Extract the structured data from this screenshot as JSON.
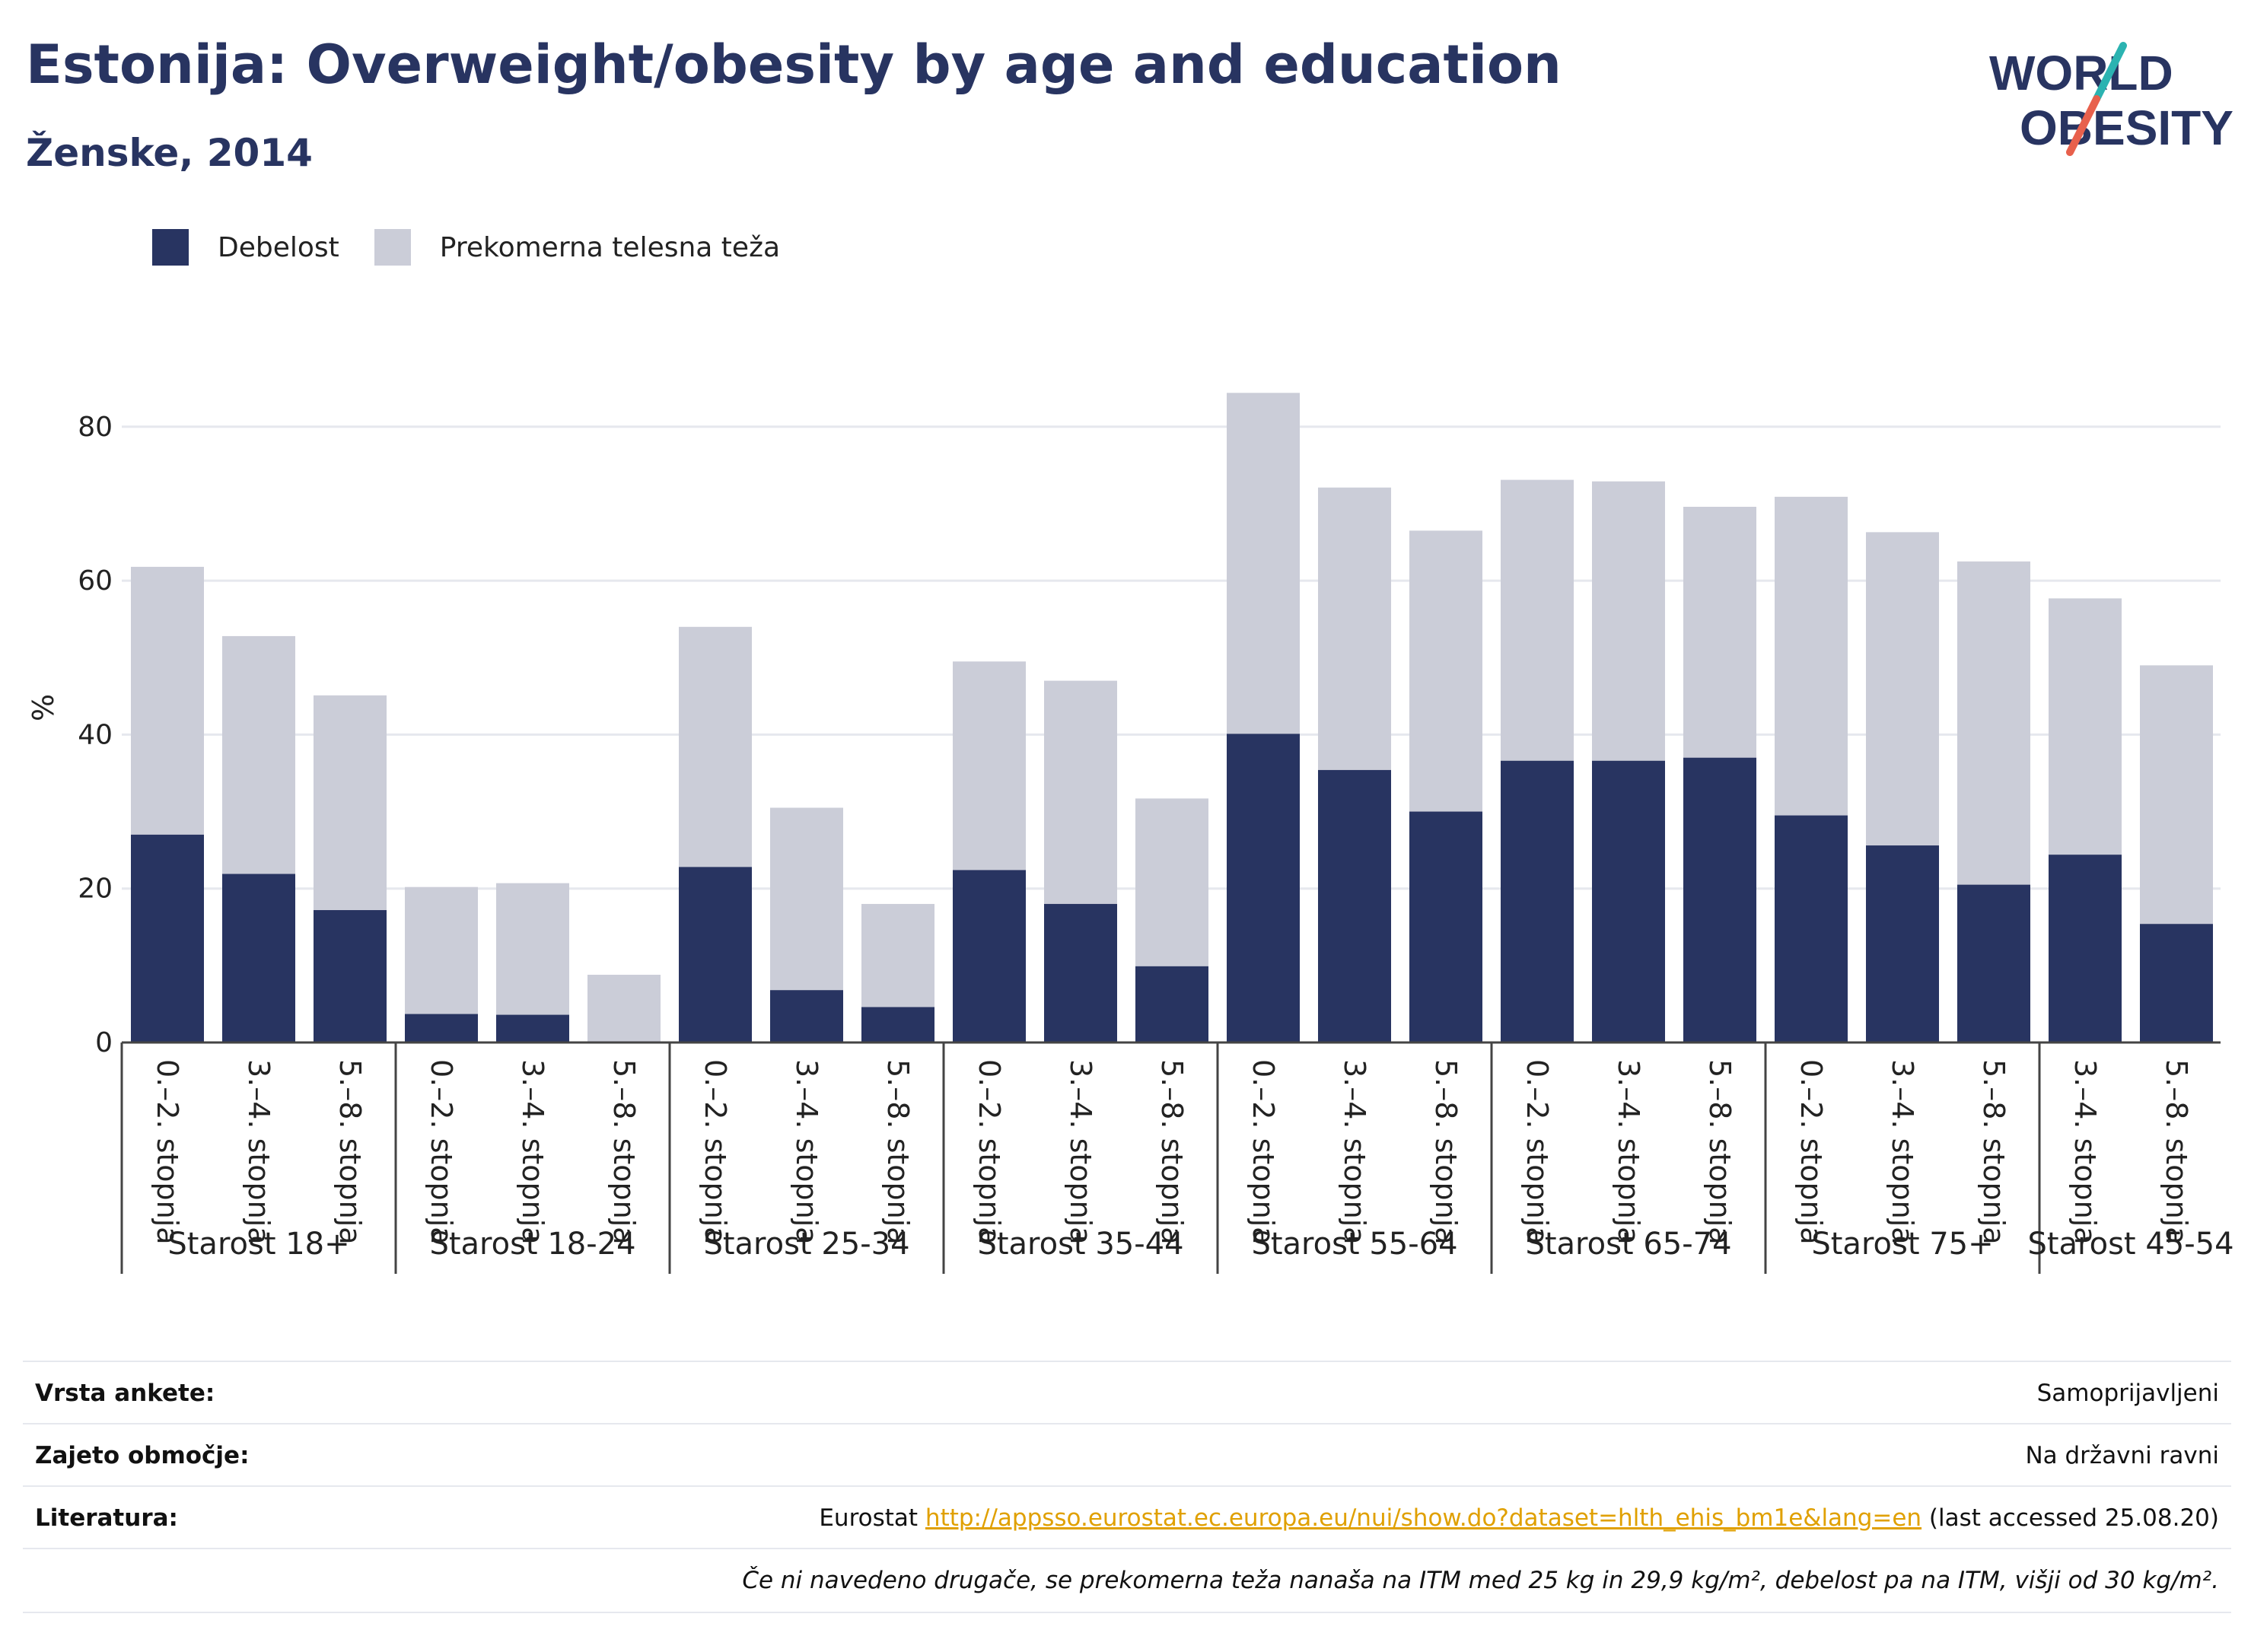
{
  "header": {
    "title": "Estonija: Overweight/obesity by age and education",
    "subtitle": "Ženske, 2014"
  },
  "logo": {
    "line1": "WORLD",
    "line2": "OBESITY"
  },
  "colors": {
    "obesity": "#283461",
    "overweight": "#cbcdd8",
    "accent_teal": "#2bb3b1",
    "accent_red": "#e8604c",
    "link": "#e0a000"
  },
  "legend": [
    {
      "label": "Debelost",
      "color": "#283461"
    },
    {
      "label": "Prekomerna telesna teža",
      "color": "#cbcdd8"
    }
  ],
  "chart_data": {
    "type": "bar",
    "stacked": "overlay",
    "ylabel": "%",
    "ylim": [
      0,
      87
    ],
    "yticks": [
      0,
      20,
      40,
      60,
      80
    ],
    "grid": true,
    "legend_position": "top-left",
    "groups": [
      {
        "label": "Starost 18+",
        "bars": [
          {
            "cat": "0.–2. stopnja",
            "obesity": 27.0,
            "overweight": 61.8
          },
          {
            "cat": "3.–4. stopnja",
            "obesity": 21.9,
            "overweight": 52.8
          },
          {
            "cat": "5.–8. stopnja",
            "obesity": 17.2,
            "overweight": 45.1
          }
        ]
      },
      {
        "label": "Starost 18-24",
        "bars": [
          {
            "cat": "0.–2. stopnja",
            "obesity": 3.7,
            "overweight": 20.2
          },
          {
            "cat": "3.–4. stopnja",
            "obesity": 3.6,
            "overweight": 20.7
          },
          {
            "cat": "5.–8. stopnja",
            "obesity": 0.0,
            "overweight": 8.8
          }
        ]
      },
      {
        "label": "Starost 25-34",
        "bars": [
          {
            "cat": "0.–2. stopnja",
            "obesity": 22.8,
            "overweight": 54.0
          },
          {
            "cat": "3.–4. stopnja",
            "obesity": 6.8,
            "overweight": 30.5
          },
          {
            "cat": "5.–8. stopnja",
            "obesity": 4.6,
            "overweight": 18.0
          }
        ]
      },
      {
        "label": "Starost 35-44",
        "bars": [
          {
            "cat": "0.–2. stopnja",
            "obesity": 22.4,
            "overweight": 49.5
          },
          {
            "cat": "3.–4. stopnja",
            "obesity": 18.0,
            "overweight": 47.0
          },
          {
            "cat": "5.–8. stopnja",
            "obesity": 9.9,
            "overweight": 31.7
          }
        ]
      },
      {
        "label": "Starost 55-64",
        "bars": [
          {
            "cat": "0.–2. stopnja",
            "obesity": 40.1,
            "overweight": 84.4
          },
          {
            "cat": "3.–4. stopnja",
            "obesity": 35.4,
            "overweight": 72.1
          },
          {
            "cat": "5.–8. stopnja",
            "obesity": 30.0,
            "overweight": 66.5
          }
        ]
      },
      {
        "label": "Starost 65-74",
        "bars": [
          {
            "cat": "0.–2. stopnja",
            "obesity": 36.6,
            "overweight": 73.1
          },
          {
            "cat": "3.–4. stopnja",
            "obesity": 36.6,
            "overweight": 72.9
          },
          {
            "cat": "5.–8. stopnja",
            "obesity": 37.0,
            "overweight": 69.6
          }
        ]
      },
      {
        "label": "Starost 75+",
        "bars": [
          {
            "cat": "0.–2. stopnja",
            "obesity": 29.5,
            "overweight": 70.9
          },
          {
            "cat": "3.–4. stopnja",
            "obesity": 25.6,
            "overweight": 66.3
          },
          {
            "cat": "5.–8. stopnja",
            "obesity": 20.5,
            "overweight": 62.5
          }
        ]
      },
      {
        "label": "Starost 45-54",
        "bars": [
          {
            "cat": "3.–4. stopnja",
            "obesity": 24.4,
            "overweight": 57.7
          },
          {
            "cat": "5.–8. stopnja",
            "obesity": 15.4,
            "overweight": 49.0
          }
        ]
      }
    ]
  },
  "info": {
    "survey_label": "Vrsta ankete:",
    "survey_value": "Samoprijavljeni",
    "area_label": "Zajeto območje:",
    "area_value": "Na državni ravni",
    "lit_label": "Literatura:",
    "lit_prefix": "Eurostat ",
    "lit_link": "http://appsso.eurostat.ec.europa.eu/nui/show.do?dataset=hlth_ehis_bm1e&lang=en",
    "lit_suffix": " (last accessed 25.08.20)",
    "note": "Če ni navedeno drugače, se prekomerna teža nanaša na ITM med 25 kg in 29,9 kg/m², debelost pa na ITM, višji od 30 kg/m²."
  }
}
